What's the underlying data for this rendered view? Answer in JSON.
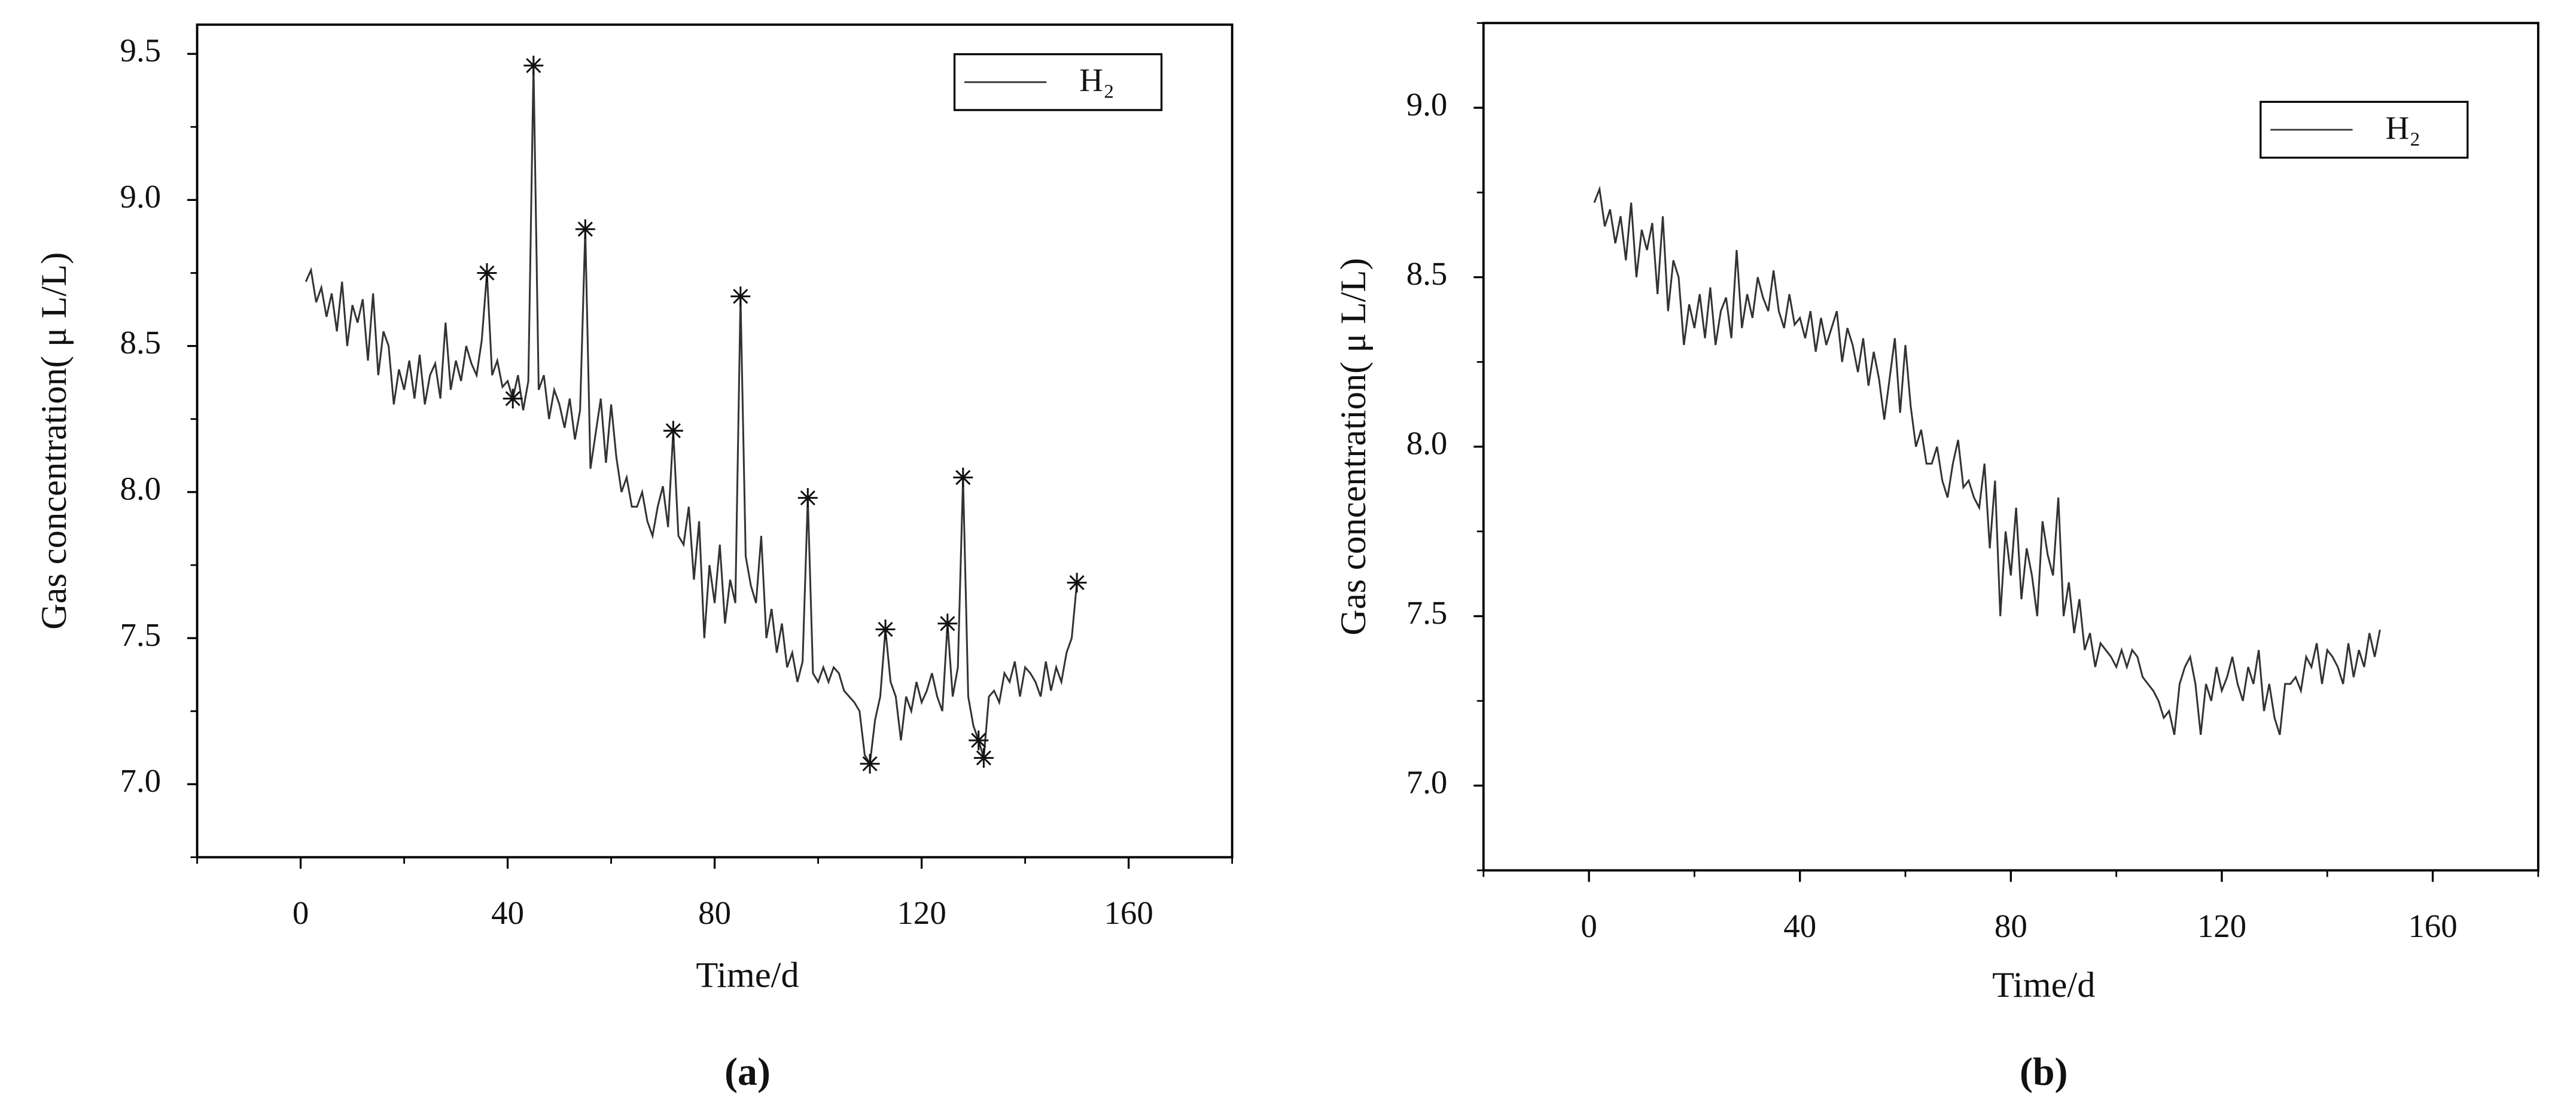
{
  "chart_data": [
    {
      "type": "line",
      "panel_label": "(a)",
      "xlabel": "Time/d",
      "ylabel": "Gas concentration( μ L/L)",
      "xlim": [
        -20,
        180
      ],
      "xticks": [
        0,
        40,
        80,
        120,
        160
      ],
      "ylim": [
        6.75,
        9.6
      ],
      "yticks": [
        {
          "value": 7,
          "label": "7.0"
        },
        7.5,
        {
          "value": 8,
          "label": "8.0"
        },
        8.5,
        {
          "value": 9,
          "label": "9.0"
        },
        9.5
      ],
      "legend": "top-right",
      "x": [
        1,
        2,
        3,
        4,
        5,
        6,
        7,
        8,
        9,
        10,
        11,
        12,
        13,
        14,
        15,
        16,
        17,
        18,
        19,
        20,
        21,
        22,
        23,
        24,
        25,
        26,
        27,
        28,
        29,
        30,
        31,
        32,
        33,
        34,
        35,
        36,
        37,
        38,
        39,
        40,
        41,
        42,
        43,
        44,
        45,
        46,
        47,
        48,
        49,
        50,
        51,
        52,
        53,
        54,
        55,
        56,
        57,
        58,
        59,
        60,
        61,
        62,
        63,
        64,
        65,
        66,
        67,
        68,
        69,
        70,
        71,
        72,
        73,
        74,
        75,
        76,
        77,
        78,
        79,
        80,
        81,
        82,
        83,
        84,
        85,
        86,
        87,
        88,
        89,
        90,
        91,
        92,
        93,
        94,
        95,
        96,
        97,
        98,
        99,
        100,
        101,
        102,
        103,
        104,
        105,
        106,
        107,
        108,
        109,
        110,
        111,
        112,
        113,
        114,
        115,
        116,
        117,
        118,
        119,
        120,
        121,
        122,
        123,
        124,
        125,
        126,
        127,
        128,
        129,
        130,
        131,
        132,
        133,
        134,
        135,
        136,
        137,
        138,
        139,
        140,
        141,
        142,
        143,
        144,
        145,
        146,
        147,
        148,
        149,
        150
      ],
      "series": [
        {
          "name": "H₂",
          "color": "#333333",
          "values": [
            8.72,
            8.76,
            8.65,
            8.7,
            8.6,
            8.68,
            8.55,
            8.72,
            8.5,
            8.64,
            8.58,
            8.66,
            8.45,
            8.68,
            8.4,
            8.55,
            8.5,
            8.3,
            8.42,
            8.35,
            8.45,
            8.32,
            8.47,
            8.3,
            8.4,
            8.44,
            8.32,
            8.58,
            8.35,
            8.45,
            8.38,
            8.5,
            8.44,
            8.4,
            8.52,
            8.75,
            8.4,
            8.45,
            8.36,
            8.38,
            8.32,
            8.4,
            8.28,
            8.38,
            9.46,
            8.35,
            8.4,
            8.25,
            8.35,
            8.3,
            8.22,
            8.32,
            8.18,
            8.28,
            8.9,
            8.08,
            8.2,
            8.32,
            8.1,
            8.3,
            8.12,
            8.0,
            8.05,
            7.95,
            7.95,
            8.0,
            7.9,
            7.85,
            7.95,
            8.02,
            7.88,
            8.21,
            7.85,
            7.82,
            7.95,
            7.7,
            7.9,
            7.5,
            7.75,
            7.62,
            7.82,
            7.55,
            7.7,
            7.62,
            8.67,
            7.78,
            7.68,
            7.62,
            7.85,
            7.5,
            7.6,
            7.45,
            7.55,
            7.4,
            7.45,
            7.35,
            7.42,
            7.98,
            7.38,
            7.35,
            7.4,
            7.35,
            7.4,
            7.38,
            7.32,
            7.3,
            7.28,
            7.25,
            7.1,
            7.07,
            7.22,
            7.3,
            7.53,
            7.35,
            7.3,
            7.15,
            7.3,
            7.25,
            7.35,
            7.28,
            7.32,
            7.38,
            7.3,
            7.25,
            7.55,
            7.3,
            7.4,
            8.05,
            7.3,
            7.2,
            7.15,
            7.09,
            7.3,
            7.32,
            7.28,
            7.38,
            7.35,
            7.42,
            7.3,
            7.4,
            7.38,
            7.35,
            7.3,
            7.42,
            7.32,
            7.4,
            7.35,
            7.45,
            7.5,
            7.69
          ]
        }
      ],
      "outliers": {
        "marker": "asterisk",
        "x": [
          36,
          41,
          45,
          55,
          72,
          85,
          98,
          110,
          113,
          125,
          128,
          131,
          132,
          150
        ],
        "values": [
          8.75,
          8.32,
          9.46,
          8.9,
          8.21,
          8.67,
          7.98,
          7.07,
          7.53,
          7.55,
          8.05,
          7.15,
          7.09,
          7.69
        ]
      }
    },
    {
      "type": "line",
      "panel_label": "(b)",
      "xlabel": "Time/d",
      "ylabel": "Gas concentration( μ L/L)",
      "xlim": [
        -20,
        180
      ],
      "xticks": [
        0,
        40,
        80,
        120,
        160
      ],
      "ylim": [
        6.75,
        9.25
      ],
      "yticks": [
        {
          "value": 7,
          "label": "7.0"
        },
        7.5,
        {
          "value": 8,
          "label": "8.0"
        },
        8.5,
        {
          "value": 9,
          "label": "9.0"
        }
      ],
      "legend": "top-right",
      "x": [
        1,
        2,
        3,
        4,
        5,
        6,
        7,
        8,
        9,
        10,
        11,
        12,
        13,
        14,
        15,
        16,
        17,
        18,
        19,
        20,
        21,
        22,
        23,
        24,
        25,
        26,
        27,
        28,
        29,
        30,
        31,
        32,
        33,
        34,
        35,
        36,
        37,
        38,
        39,
        40,
        41,
        42,
        43,
        44,
        45,
        46,
        47,
        48,
        49,
        50,
        51,
        52,
        53,
        54,
        55,
        56,
        57,
        58,
        59,
        60,
        61,
        62,
        63,
        64,
        65,
        66,
        67,
        68,
        69,
        70,
        71,
        72,
        73,
        74,
        75,
        76,
        77,
        78,
        79,
        80,
        81,
        82,
        83,
        84,
        85,
        86,
        87,
        88,
        89,
        90,
        91,
        92,
        93,
        94,
        95,
        96,
        97,
        98,
        99,
        100,
        101,
        102,
        103,
        104,
        105,
        106,
        107,
        108,
        109,
        110,
        111,
        112,
        113,
        114,
        115,
        116,
        117,
        118,
        119,
        120,
        121,
        122,
        123,
        124,
        125,
        126,
        127,
        128,
        129,
        130,
        131,
        132,
        133,
        134,
        135,
        136,
        137,
        138,
        139,
        140,
        141,
        142,
        143,
        144,
        145,
        146,
        147,
        148,
        149,
        150
      ],
      "series": [
        {
          "name": "H₂",
          "color": "#333333",
          "values": [
            8.72,
            8.76,
            8.65,
            8.7,
            8.6,
            8.68,
            8.55,
            8.72,
            8.5,
            8.64,
            8.58,
            8.66,
            8.45,
            8.68,
            8.4,
            8.55,
            8.5,
            8.3,
            8.42,
            8.35,
            8.45,
            8.32,
            8.47,
            8.3,
            8.4,
            8.44,
            8.32,
            8.58,
            8.35,
            8.45,
            8.38,
            8.5,
            8.44,
            8.4,
            8.52,
            8.4,
            8.35,
            8.45,
            8.36,
            8.38,
            8.32,
            8.4,
            8.28,
            8.38,
            8.3,
            8.35,
            8.4,
            8.25,
            8.35,
            8.3,
            8.22,
            8.32,
            8.18,
            8.28,
            8.2,
            8.08,
            8.2,
            8.32,
            8.1,
            8.3,
            8.12,
            8.0,
            8.05,
            7.95,
            7.95,
            8.0,
            7.9,
            7.85,
            7.95,
            8.02,
            7.88,
            7.9,
            7.85,
            7.82,
            7.95,
            7.7,
            7.9,
            7.5,
            7.75,
            7.62,
            7.82,
            7.55,
            7.7,
            7.62,
            7.5,
            7.78,
            7.68,
            7.62,
            7.85,
            7.5,
            7.6,
            7.45,
            7.55,
            7.4,
            7.45,
            7.35,
            7.42,
            7.4,
            7.38,
            7.35,
            7.4,
            7.35,
            7.4,
            7.38,
            7.32,
            7.3,
            7.28,
            7.25,
            7.2,
            7.22,
            7.15,
            7.3,
            7.35,
            7.38,
            7.3,
            7.15,
            7.3,
            7.25,
            7.35,
            7.28,
            7.32,
            7.38,
            7.3,
            7.25,
            7.35,
            7.3,
            7.4,
            7.22,
            7.3,
            7.2,
            7.15,
            7.3,
            7.3,
            7.32,
            7.28,
            7.38,
            7.35,
            7.42,
            7.3,
            7.4,
            7.38,
            7.35,
            7.3,
            7.42,
            7.32,
            7.4,
            7.35,
            7.45,
            7.38,
            7.46
          ]
        }
      ]
    }
  ]
}
